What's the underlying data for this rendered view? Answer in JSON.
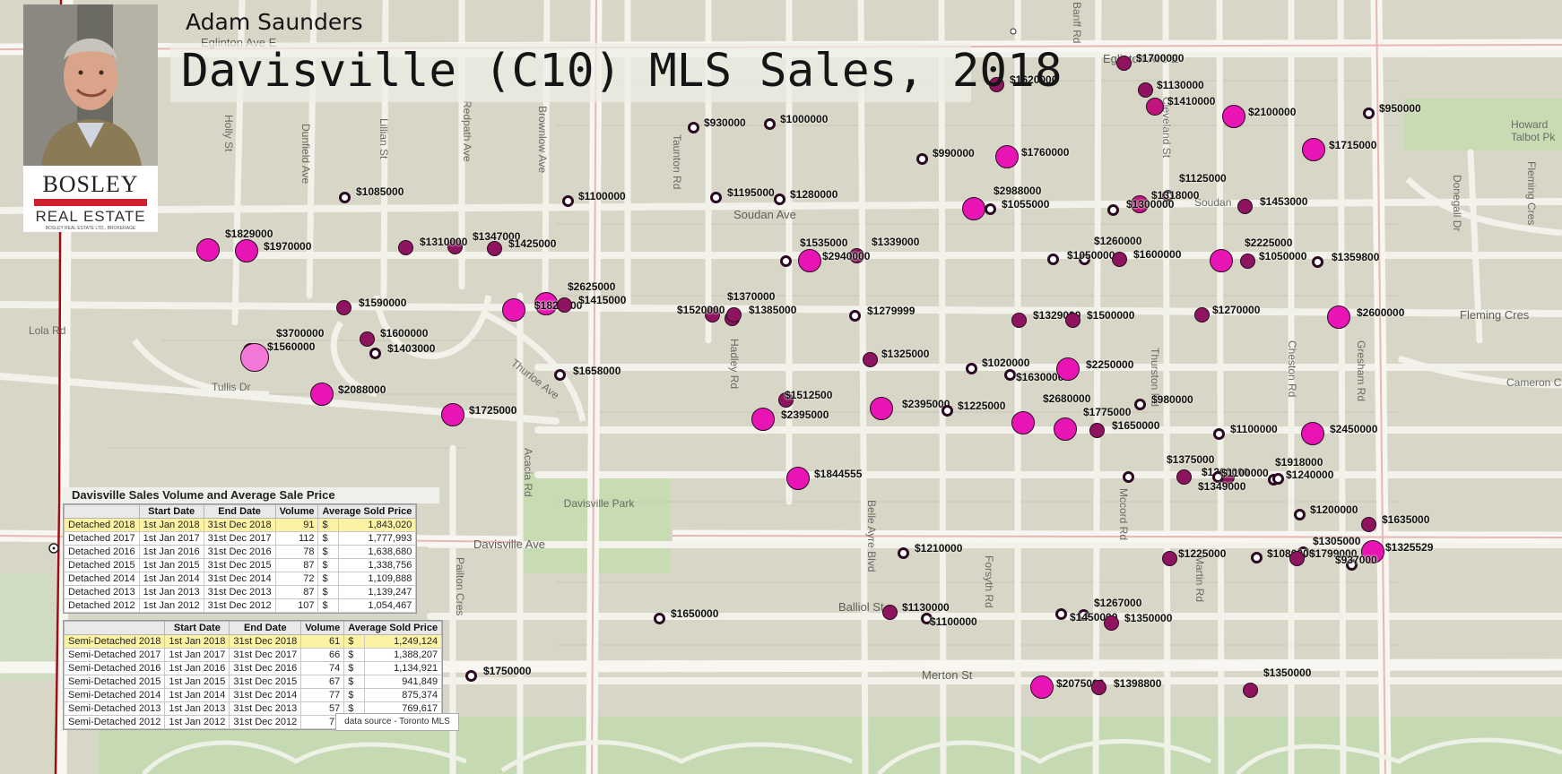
{
  "header": {
    "agent_name": "Adam Saunders",
    "title": "Davisville (C10) MLS Sales, 2018"
  },
  "branding": {
    "brand_name": "BOSLEY",
    "brand_sub": "REAL ESTATE",
    "brand_fine": "BOSLEY REAL ESTATE LTD., BROKERAGE",
    "brand_red": "#d02030"
  },
  "colors": {
    "large_sale": "#e815b4",
    "mid_sale": "#c0157e",
    "dark_sale": "#8e1460",
    "highlight_row": "#fbf3a3"
  },
  "streets": {
    "eglinton_left": "Eglinton Ave E",
    "eglinton_right": "Eglinton Ave E",
    "soudan": "Soudan Ave",
    "soudan2": "Soudan",
    "davisville": "Davisville Ave",
    "balliol": "Balliol St",
    "merton": "Merton St",
    "lola": "Lola Rd",
    "tullis": "Tullis Dr",
    "holly": "Holly St",
    "dunfield": "Dunfield Ave",
    "lillian": "Lillian St",
    "redpath": "Redpath Ave",
    "brownlow": "Brownlow Ave",
    "taunton": "Taunton Rd",
    "banff": "Banff Rd",
    "hadley": "Hadley Rd",
    "acacia": "Acacia Rd",
    "pailton": "Pailton Cres",
    "belle": "Belle Ayre Blvd",
    "forsyth": "Forsyth Rd",
    "mccord": "Mccord Rd",
    "martin": "Martin Rd",
    "thurston": "Thurston Rd",
    "cleveland": "Cleveland St",
    "chestnut": "Cheston Rd",
    "gresham": "Gresham Rd",
    "donegall": "Donegall Dr",
    "fleming": "Fleming Cres",
    "fleming2": "Fleming Cres",
    "cameron": "Cameron Cres",
    "howard": "Howard Talbot Pk",
    "thurloe": "Thurloe Ave",
    "park_name": "Davisville Park"
  },
  "sales": [
    {
      "price": "$1700000"
    },
    {
      "price": "$1620000"
    },
    {
      "price": "$1130000"
    },
    {
      "price": "$1410000"
    },
    {
      "price": "$2100000"
    },
    {
      "price": "$950000"
    },
    {
      "price": "$930000"
    },
    {
      "price": "$1000000"
    },
    {
      "price": "$990000"
    },
    {
      "price": "$1760000"
    },
    {
      "price": "$1715000"
    },
    {
      "price": "$1085000"
    },
    {
      "price": "$1100000"
    },
    {
      "price": "$1195000"
    },
    {
      "price": "$1280000"
    },
    {
      "price": "$2988000"
    },
    {
      "price": "$1055000"
    },
    {
      "price": "$1125000"
    },
    {
      "price": "$1318000"
    },
    {
      "price": "$1300000"
    },
    {
      "price": "$1453000"
    },
    {
      "price": "$1829000"
    },
    {
      "price": "$1970000"
    },
    {
      "price": "$1347000"
    },
    {
      "price": "$1310000"
    },
    {
      "price": "$1425000"
    },
    {
      "price": "$1535000"
    },
    {
      "price": "$1339000"
    },
    {
      "price": "$2940000"
    },
    {
      "price": "$1260000"
    },
    {
      "price": "$1050000"
    },
    {
      "price": "$1600000"
    },
    {
      "price": "$2225000"
    },
    {
      "price": "$1050000"
    },
    {
      "price": "$1359800"
    },
    {
      "price": "$2625000"
    },
    {
      "price": "$1590000"
    },
    {
      "price": "$1828000"
    },
    {
      "price": "$1415000"
    },
    {
      "price": "$1370000"
    },
    {
      "price": "$1520000"
    },
    {
      "price": "$1385000"
    },
    {
      "price": "$1279999"
    },
    {
      "price": "$1329000"
    },
    {
      "price": "$1500000"
    },
    {
      "price": "$1270000"
    },
    {
      "price": "$2600000"
    },
    {
      "price": "$3700000"
    },
    {
      "price": "$1560000"
    },
    {
      "price": "$1600000"
    },
    {
      "price": "$1403000"
    },
    {
      "price": "$1325000"
    },
    {
      "price": "$1658000"
    },
    {
      "price": "$1020000"
    },
    {
      "price": "$1630000"
    },
    {
      "price": "$2250000"
    },
    {
      "price": "$2088000"
    },
    {
      "price": "$1512500"
    },
    {
      "price": "$2395000"
    },
    {
      "price": "$2395000"
    },
    {
      "price": "$1225000"
    },
    {
      "price": "$2680000"
    },
    {
      "price": "$980000"
    },
    {
      "price": "$1725000"
    },
    {
      "price": "$1775000"
    },
    {
      "price": "$1650000"
    },
    {
      "price": "$1100000"
    },
    {
      "price": "$2450000"
    },
    {
      "price": "$1375000"
    },
    {
      "price": "$1918000"
    },
    {
      "price": "$1844555"
    },
    {
      "price": "$1300000"
    },
    {
      "price": "$1100000"
    },
    {
      "price": "$1240000"
    },
    {
      "price": "$1349000"
    },
    {
      "price": "$1200000"
    },
    {
      "price": "$1635000"
    },
    {
      "price": "$1210000"
    },
    {
      "price": "$1305000"
    },
    {
      "price": "$1225000"
    },
    {
      "price": "$1080000"
    },
    {
      "price": "$1799000"
    },
    {
      "price": "$1325529"
    },
    {
      "price": "$937000"
    },
    {
      "price": "$1650000"
    },
    {
      "price": "$1130000"
    },
    {
      "price": "$1100000"
    },
    {
      "price": "$1267000"
    },
    {
      "price": "$1450000"
    },
    {
      "price": "$1350000"
    },
    {
      "price": "$1750000"
    },
    {
      "price": "$2075000"
    },
    {
      "price": "$1398800"
    },
    {
      "price": "$1350000"
    }
  ],
  "summary": {
    "title": "Davisville Sales Volume and Average Sale Price",
    "source": "data source - Toronto MLS",
    "headers": [
      "",
      "Start Date",
      "End Date",
      "Volume",
      "Average Sold Price"
    ],
    "detached": [
      [
        "Detached 2018",
        "1st Jan 2018",
        "31st Dec 2018",
        "91",
        "$",
        "1,843,020"
      ],
      [
        "Detached 2017",
        "1st Jan 2017",
        "31st Dec 2017",
        "112",
        "$",
        "1,777,993"
      ],
      [
        "Detached 2016",
        "1st Jan 2016",
        "31st Dec 2016",
        "78",
        "$",
        "1,638,680"
      ],
      [
        "Detached 2015",
        "1st Jan 2015",
        "31st Dec 2015",
        "87",
        "$",
        "1,338,756"
      ],
      [
        "Detached 2014",
        "1st Jan 2014",
        "31st Dec 2014",
        "72",
        "$",
        "1,109,888"
      ],
      [
        "Detached 2013",
        "1st Jan 2013",
        "31st Dec 2013",
        "87",
        "$",
        "1,139,247"
      ],
      [
        "Detached 2012",
        "1st Jan 2012",
        "31st Dec 2012",
        "107",
        "$",
        "1,054,467"
      ]
    ],
    "semi": [
      [
        "Semi-Detached 2018",
        "1st Jan 2018",
        "31st Dec 2018",
        "61",
        "$",
        "1,249,124"
      ],
      [
        "Semi-Detached 2017",
        "1st Jan 2017",
        "31st Dec 2017",
        "66",
        "$",
        "1,388,207"
      ],
      [
        "Semi-Detached 2016",
        "1st Jan 2016",
        "31st Dec 2016",
        "74",
        "$",
        "1,134,921"
      ],
      [
        "Semi-Detached 2015",
        "1st Jan 2015",
        "31st Dec 2015",
        "67",
        "$",
        "941,849"
      ],
      [
        "Semi-Detached 2014",
        "1st Jan 2014",
        "31st Dec 2014",
        "77",
        "$",
        "875,374"
      ],
      [
        "Semi-Detached 2013",
        "1st Jan 2013",
        "31st Dec 2013",
        "57",
        "$",
        "769,617"
      ],
      [
        "Semi-Detached 2012",
        "1st Jan 2012",
        "31st Dec 2012",
        "77",
        "$",
        "776,925"
      ]
    ]
  }
}
